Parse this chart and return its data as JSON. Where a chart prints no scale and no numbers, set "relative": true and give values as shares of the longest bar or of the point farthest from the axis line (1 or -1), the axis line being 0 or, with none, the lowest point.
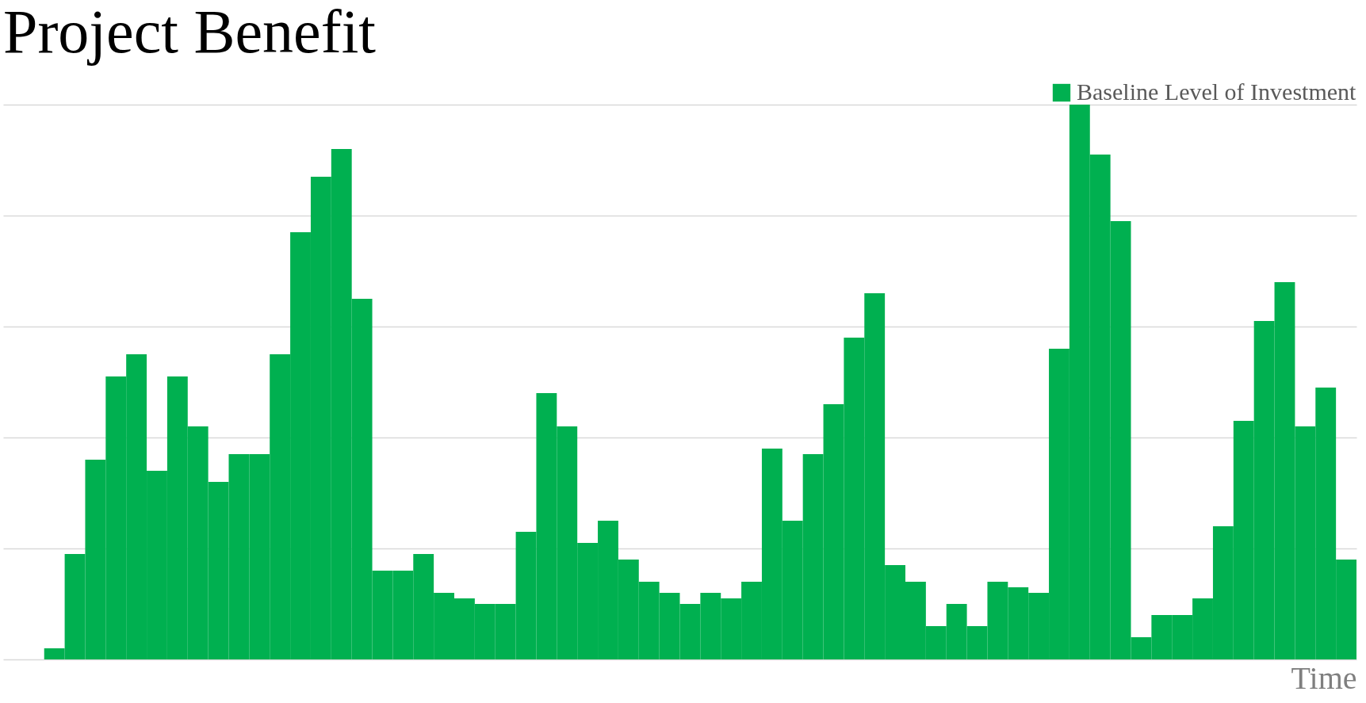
{
  "chart_data": {
    "type": "bar",
    "title": "Project Benefit",
    "xlabel": "Time",
    "relative": true,
    "grid": "y",
    "legend": "top right",
    "categories": [
      null,
      null,
      null,
      null,
      null,
      null,
      null,
      null,
      null,
      null,
      null,
      null,
      null,
      null,
      null,
      null,
      null,
      null,
      null,
      null,
      null,
      null,
      null,
      null,
      null,
      null,
      null,
      null,
      null,
      null,
      null,
      null,
      null,
      null,
      null,
      null,
      null,
      null,
      null,
      null,
      null,
      null,
      null,
      null,
      null,
      null,
      null,
      null,
      null,
      null,
      null,
      null,
      null,
      null,
      null,
      null,
      null,
      null,
      null,
      null,
      null,
      null,
      null,
      null
    ],
    "series": [
      {
        "name": "Baseline Level of Investment",
        "color": "#00b050",
        "values": [
          0.02,
          0.19,
          0.36,
          0.51,
          0.55,
          0.34,
          0.51,
          0.42,
          0.32,
          0.37,
          0.37,
          0.55,
          0.77,
          0.87,
          0.92,
          0.65,
          0.16,
          0.16,
          0.19,
          0.12,
          0.11,
          0.1,
          0.1,
          0.23,
          0.48,
          0.42,
          0.21,
          0.25,
          0.18,
          0.14,
          0.12,
          0.1,
          0.12,
          0.11,
          0.14,
          0.38,
          0.25,
          0.37,
          0.46,
          0.58,
          0.66,
          0.17,
          0.14,
          0.06,
          0.1,
          0.06,
          0.14,
          0.13,
          0.12,
          0.56,
          1,
          0.91,
          0.79,
          0.04,
          0.08,
          0.08,
          0.11,
          0.24,
          0.43,
          0.61,
          0.68,
          0.42,
          0.49,
          0.18
        ]
      }
    ]
  }
}
